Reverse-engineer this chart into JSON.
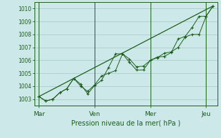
{
  "background_color": "#cce8e8",
  "grid_color": "#aacccc",
  "line_color": "#1a5e1a",
  "marker_color": "#1a5e1a",
  "xlabel": "Pression niveau de la mer( hPa )",
  "ylim": [
    1002.5,
    1010.5
  ],
  "yticks": [
    1003,
    1004,
    1005,
    1006,
    1007,
    1008,
    1009,
    1010
  ],
  "day_labels": [
    "Mar",
    "Ven",
    "Mer",
    "Jeu"
  ],
  "day_positions": [
    0,
    48,
    96,
    144
  ],
  "xlim": [
    -4,
    154
  ],
  "series1_x": [
    0,
    6,
    12,
    18,
    24,
    30,
    36,
    42,
    48,
    54,
    60,
    66,
    72,
    78,
    84,
    90,
    96,
    102,
    108,
    114,
    120,
    126,
    132,
    138,
    144,
    150
  ],
  "series1_y": [
    1003.2,
    1002.85,
    1003.0,
    1003.5,
    1003.8,
    1004.6,
    1004.0,
    1003.6,
    1004.1,
    1004.8,
    1005.0,
    1005.2,
    1006.5,
    1006.1,
    1005.5,
    1005.55,
    1006.0,
    1006.2,
    1006.55,
    1006.65,
    1007.0,
    1007.8,
    1008.0,
    1008.0,
    1009.4,
    1010.2
  ],
  "series2_x": [
    0,
    6,
    12,
    18,
    24,
    30,
    36,
    42,
    48,
    54,
    60,
    66,
    72,
    78,
    84,
    90,
    96,
    102,
    108,
    114,
    120,
    126,
    132,
    138,
    144,
    150
  ],
  "series2_y": [
    1003.2,
    1002.85,
    1003.0,
    1003.5,
    1003.8,
    1004.6,
    1004.15,
    1003.4,
    1004.05,
    1004.45,
    1005.45,
    1006.5,
    1006.5,
    1005.85,
    1005.25,
    1005.25,
    1006.0,
    1006.25,
    1006.3,
    1006.6,
    1007.65,
    1007.85,
    1008.55,
    1009.4,
    1009.4,
    1010.2
  ],
  "series3_x": [
    0,
    150
  ],
  "series3_y": [
    1003.2,
    1010.2
  ]
}
